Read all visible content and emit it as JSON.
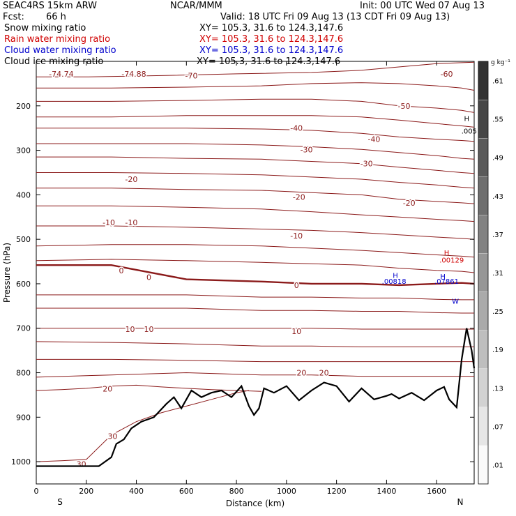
{
  "header": {
    "model": "SEAC4RS 15km ARW",
    "center": "NCAR/MMM",
    "init": "Init: 00 UTC Wed 07 Aug 13",
    "fcst_label": "Fcst:",
    "fcst_value": "66 h",
    "valid": "Valid: 18 UTC Fri 09 Aug 13 (13 CDT Fri 09 Aug 13)"
  },
  "fields": [
    {
      "name": "Snow mixing ratio",
      "xy": "XY= 105.3, 31.6 to 124.3,147.6",
      "color": "#000000"
    },
    {
      "name": "Rain water mixing ratio",
      "xy": "XY= 105.3, 31.6 to 124.3,147.6",
      "color": "#d00000"
    },
    {
      "name": "Cloud water mixing ratio",
      "xy": "XY= 105.3, 31.6 to 124.3,147.6",
      "color": "#0000cc"
    },
    {
      "name": "Cloud ice mixing ratio",
      "xy": "XY= 105.3, 31.6 to 124.3,147.6",
      "color": "#000000"
    }
  ],
  "chart_data": {
    "type": "contour cross-section",
    "xlabel": "Distance (km)",
    "ylabel": "Pressure (hPa)",
    "xlim": [
      0,
      1750
    ],
    "ylim": [
      1050,
      100
    ],
    "x_ticks": [
      0,
      200,
      400,
      600,
      800,
      1000,
      1200,
      1400,
      1600
    ],
    "y_ticks": [
      200,
      300,
      400,
      500,
      600,
      700,
      800,
      900,
      1000
    ],
    "y_tick_labels": [
      "200",
      "300",
      "400",
      "500",
      "600",
      "700",
      "800",
      "900",
      "1000"
    ],
    "x_tick_labels": [
      "0",
      "200",
      "400",
      "600",
      "800",
      "1000",
      "1200",
      "1400",
      "1600"
    ],
    "direction_left": "S",
    "direction_right": "N",
    "colorbar": {
      "unit": "g kg⁻¹",
      "labels": [
        ".01",
        ".07",
        ".13",
        ".19",
        ".25",
        ".31",
        ".37",
        ".43",
        ".49",
        ".55",
        ".61"
      ],
      "values": [
        0.01,
        0.07,
        0.13,
        0.19,
        0.25,
        0.31,
        0.37,
        0.43,
        0.49,
        0.55,
        0.61
      ]
    },
    "temperature_contours": [
      {
        "level": "-70",
        "x": [
          0,
          200,
          500,
          800,
          1100,
          1300,
          1500,
          1600,
          1700,
          1750
        ],
        "p": [
          135,
          135,
          132,
          128,
          125,
          120,
          110,
          105,
          103,
          102
        ]
      },
      {
        "level": "-60",
        "x": [
          0,
          300,
          600,
          900,
          1100,
          1300,
          1450,
          1600,
          1700,
          1750
        ],
        "p": [
          160,
          160,
          158,
          155,
          150,
          148,
          150,
          155,
          160,
          165
        ]
      },
      {
        "level": "-50",
        "x": [
          0,
          300,
          600,
          900,
          1100,
          1300,
          1450,
          1600,
          1700,
          1750
        ],
        "p": [
          190,
          190,
          188,
          185,
          185,
          190,
          200,
          205,
          210,
          215
        ]
      },
      {
        "level": "-40",
        "x": [
          0,
          300,
          600,
          900,
          1100,
          1300,
          1450,
          1600,
          1700,
          1750
        ],
        "p": [
          225,
          225,
          222,
          222,
          222,
          225,
          232,
          240,
          245,
          248
        ]
      },
      {
        "level": "-40",
        "x": [
          0,
          300,
          600,
          900,
          1100,
          1300,
          1450,
          1600,
          1700,
          1750
        ],
        "p": [
          250,
          250,
          250,
          252,
          255,
          262,
          270,
          275,
          278,
          280
        ]
      },
      {
        "level": "-30",
        "x": [
          0,
          300,
          600,
          900,
          1100,
          1300,
          1450,
          1600,
          1700,
          1750
        ],
        "p": [
          285,
          285,
          285,
          288,
          292,
          298,
          305,
          312,
          318,
          320
        ]
      },
      {
        "level": "-30",
        "x": [
          0,
          300,
          600,
          900,
          1100,
          1300,
          1450,
          1600,
          1700,
          1750
        ],
        "p": [
          315,
          315,
          318,
          320,
          325,
          330,
          338,
          345,
          350,
          352
        ]
      },
      {
        "level": "-20",
        "x": [
          0,
          300,
          600,
          900,
          1100,
          1300,
          1450,
          1600,
          1700,
          1750
        ],
        "p": [
          350,
          350,
          352,
          355,
          360,
          365,
          372,
          378,
          383,
          385
        ]
      },
      {
        "level": "-20",
        "x": [
          0,
          300,
          600,
          900,
          1100,
          1300,
          1450,
          1600,
          1700,
          1750
        ],
        "p": [
          385,
          385,
          388,
          390,
          395,
          400,
          410,
          415,
          418,
          420
        ]
      },
      {
        "level": "-10",
        "x": [
          0,
          300,
          600,
          900,
          1100,
          1300,
          1450,
          1600,
          1700,
          1750
        ],
        "p": [
          425,
          425,
          428,
          432,
          438,
          445,
          450,
          455,
          458,
          460
        ]
      },
      {
        "level": "-10",
        "x": [
          0,
          300,
          600,
          900,
          1100,
          1300,
          1450,
          1600,
          1700,
          1750
        ],
        "p": [
          470,
          470,
          473,
          477,
          480,
          485,
          490,
          495,
          498,
          500
        ]
      },
      {
        "level": "-10",
        "x": [
          0,
          300,
          600,
          900,
          1100,
          1300,
          1450,
          1600,
          1700,
          1750
        ],
        "p": [
          515,
          512,
          512,
          515,
          520,
          525,
          530,
          535,
          538,
          540
        ]
      },
      {
        "level": "-10",
        "x": [
          0,
          300,
          600,
          900,
          1100,
          1300,
          1450,
          1600,
          1700,
          1750
        ],
        "p": [
          548,
          545,
          548,
          552,
          555,
          558,
          565,
          570,
          572,
          575
        ]
      },
      {
        "level": "0",
        "x": [
          0,
          300,
          600,
          900,
          1100,
          1300,
          1450,
          1600,
          1700,
          1750
        ],
        "p": [
          558,
          558,
          590,
          595,
          600,
          600,
          603,
          600,
          598,
          600
        ]
      },
      {
        "level": "10",
        "x": [
          0,
          300,
          600,
          900,
          1100,
          1300,
          1450,
          1600,
          1700,
          1750
        ],
        "p": [
          625,
          625,
          625,
          630,
          630,
          632,
          632,
          635,
          636,
          636
        ]
      },
      {
        "level": "10",
        "x": [
          0,
          300,
          600,
          900,
          1100,
          1300,
          1450,
          1600,
          1700,
          1750
        ],
        "p": [
          655,
          655,
          655,
          660,
          660,
          662,
          662,
          665,
          666,
          666
        ]
      },
      {
        "level": "10",
        "x": [
          0,
          300,
          600,
          900,
          1100,
          1300,
          1450,
          1600,
          1700,
          1750
        ],
        "p": [
          700,
          700,
          700,
          700,
          700,
          702,
          702,
          702,
          702,
          702
        ]
      },
      {
        "level": "10",
        "x": [
          0,
          300,
          600,
          900,
          1100,
          1300,
          1450,
          1600,
          1700,
          1750
        ],
        "p": [
          730,
          732,
          735,
          740,
          740,
          742,
          742,
          742,
          742,
          742
        ]
      },
      {
        "level": "20",
        "x": [
          0,
          300,
          600,
          900,
          1100,
          1300,
          1450,
          1600,
          1700,
          1750
        ],
        "p": [
          770,
          770,
          772,
          775,
          775,
          775,
          775,
          775,
          775,
          775
        ]
      },
      {
        "level": "20",
        "x": [
          0,
          300,
          600,
          900,
          1100,
          1300,
          1450,
          1600,
          1700,
          1750
        ],
        "p": [
          810,
          805,
          800,
          805,
          805,
          808,
          808,
          808,
          808,
          808
        ]
      },
      {
        "level": "20",
        "x": [
          0,
          100,
          200,
          300,
          400,
          500,
          600,
          700,
          800,
          900
        ],
        "p": [
          840,
          838,
          835,
          830,
          828,
          832,
          835,
          838,
          840,
          842
        ]
      },
      {
        "level": "30",
        "x": [
          0,
          100,
          200,
          300,
          400,
          500,
          600,
          700,
          800,
          850
        ],
        "p": [
          1000,
          998,
          995,
          940,
          910,
          890,
          875,
          860,
          845,
          840
        ]
      }
    ],
    "contour_labels": [
      {
        "text": "-74.74",
        "x": 100,
        "p": 128
      },
      {
        "text": "-74.88",
        "x": 390,
        "p": 128
      },
      {
        "text": "-70",
        "x": 620,
        "p": 132
      },
      {
        "text": "-60",
        "x": 1640,
        "p": 128
      },
      {
        "text": "-50",
        "x": 1470,
        "p": 200
      },
      {
        "text": "-40",
        "x": 1040,
        "p": 250
      },
      {
        "text": "-40",
        "x": 1350,
        "p": 275
      },
      {
        "text": "-30",
        "x": 1080,
        "p": 298
      },
      {
        "text": "-30",
        "x": 1320,
        "p": 330
      },
      {
        "text": "-20",
        "x": 380,
        "p": 365
      },
      {
        "text": "-20",
        "x": 1050,
        "p": 405
      },
      {
        "text": "-20",
        "x": 1490,
        "p": 418
      },
      {
        "text": "-10",
        "x": 290,
        "p": 462
      },
      {
        "text": "-10",
        "x": 380,
        "p": 462
      },
      {
        "text": "-10",
        "x": 1040,
        "p": 492
      },
      {
        "text": "0",
        "x": 340,
        "p": 570
      },
      {
        "text": "0",
        "x": 450,
        "p": 585
      },
      {
        "text": "0",
        "x": 1040,
        "p": 603
      },
      {
        "text": "10",
        "x": 375,
        "p": 702
      },
      {
        "text": "10",
        "x": 450,
        "p": 702
      },
      {
        "text": "10",
        "x": 1040,
        "p": 707
      },
      {
        "text": "20",
        "x": 1060,
        "p": 800
      },
      {
        "text": "20",
        "x": 1150,
        "p": 800
      },
      {
        "text": "20",
        "x": 285,
        "p": 836
      },
      {
        "text": "30",
        "x": 305,
        "p": 943
      },
      {
        "text": "30",
        "x": 180,
        "p": 1005
      }
    ],
    "terrain": {
      "x": [
        0,
        250,
        300,
        320,
        350,
        380,
        420,
        470,
        520,
        550,
        580,
        620,
        660,
        700,
        740,
        780,
        820,
        850,
        870,
        890,
        910,
        950,
        1000,
        1050,
        1100,
        1150,
        1200,
        1250,
        1300,
        1350,
        1400,
        1420,
        1450,
        1500,
        1550,
        1600,
        1630,
        1650,
        1680,
        1700,
        1720,
        1740,
        1750
      ],
      "p": [
        1010,
        1010,
        990,
        960,
        950,
        925,
        910,
        900,
        870,
        855,
        880,
        840,
        855,
        845,
        840,
        855,
        830,
        875,
        895,
        880,
        835,
        845,
        830,
        862,
        840,
        822,
        830,
        865,
        835,
        860,
        852,
        848,
        858,
        845,
        862,
        840,
        832,
        860,
        878,
        770,
        700,
        750,
        790
      ]
    },
    "markers": [
      {
        "text": "H",
        "x": 1720,
        "p": 234,
        "color": "#000000"
      },
      {
        "text": ".005",
        "x": 1730,
        "p": 262,
        "color": "#000000"
      },
      {
        "text": "H",
        "x": 1640,
        "p": 536,
        "color": "#d00000"
      },
      {
        "text": ".00129",
        "x": 1660,
        "p": 552,
        "color": "#d00000"
      },
      {
        "text": "H",
        "x": 1435,
        "p": 587,
        "color": "#0000cc"
      },
      {
        "text": ".00818",
        "x": 1430,
        "p": 600,
        "color": "#0000cc"
      },
      {
        "text": "H",
        "x": 1625,
        "p": 589,
        "color": "#0000cc"
      },
      {
        "text": ".07861",
        "x": 1640,
        "p": 600,
        "color": "#0000cc"
      },
      {
        "text": "W",
        "x": 1675,
        "p": 645,
        "color": "#0000cc"
      }
    ],
    "series": [
      {
        "name": "Temperature",
        "color": "#8b1a1a"
      },
      {
        "name": "Terrain",
        "color": "#000000"
      }
    ]
  }
}
